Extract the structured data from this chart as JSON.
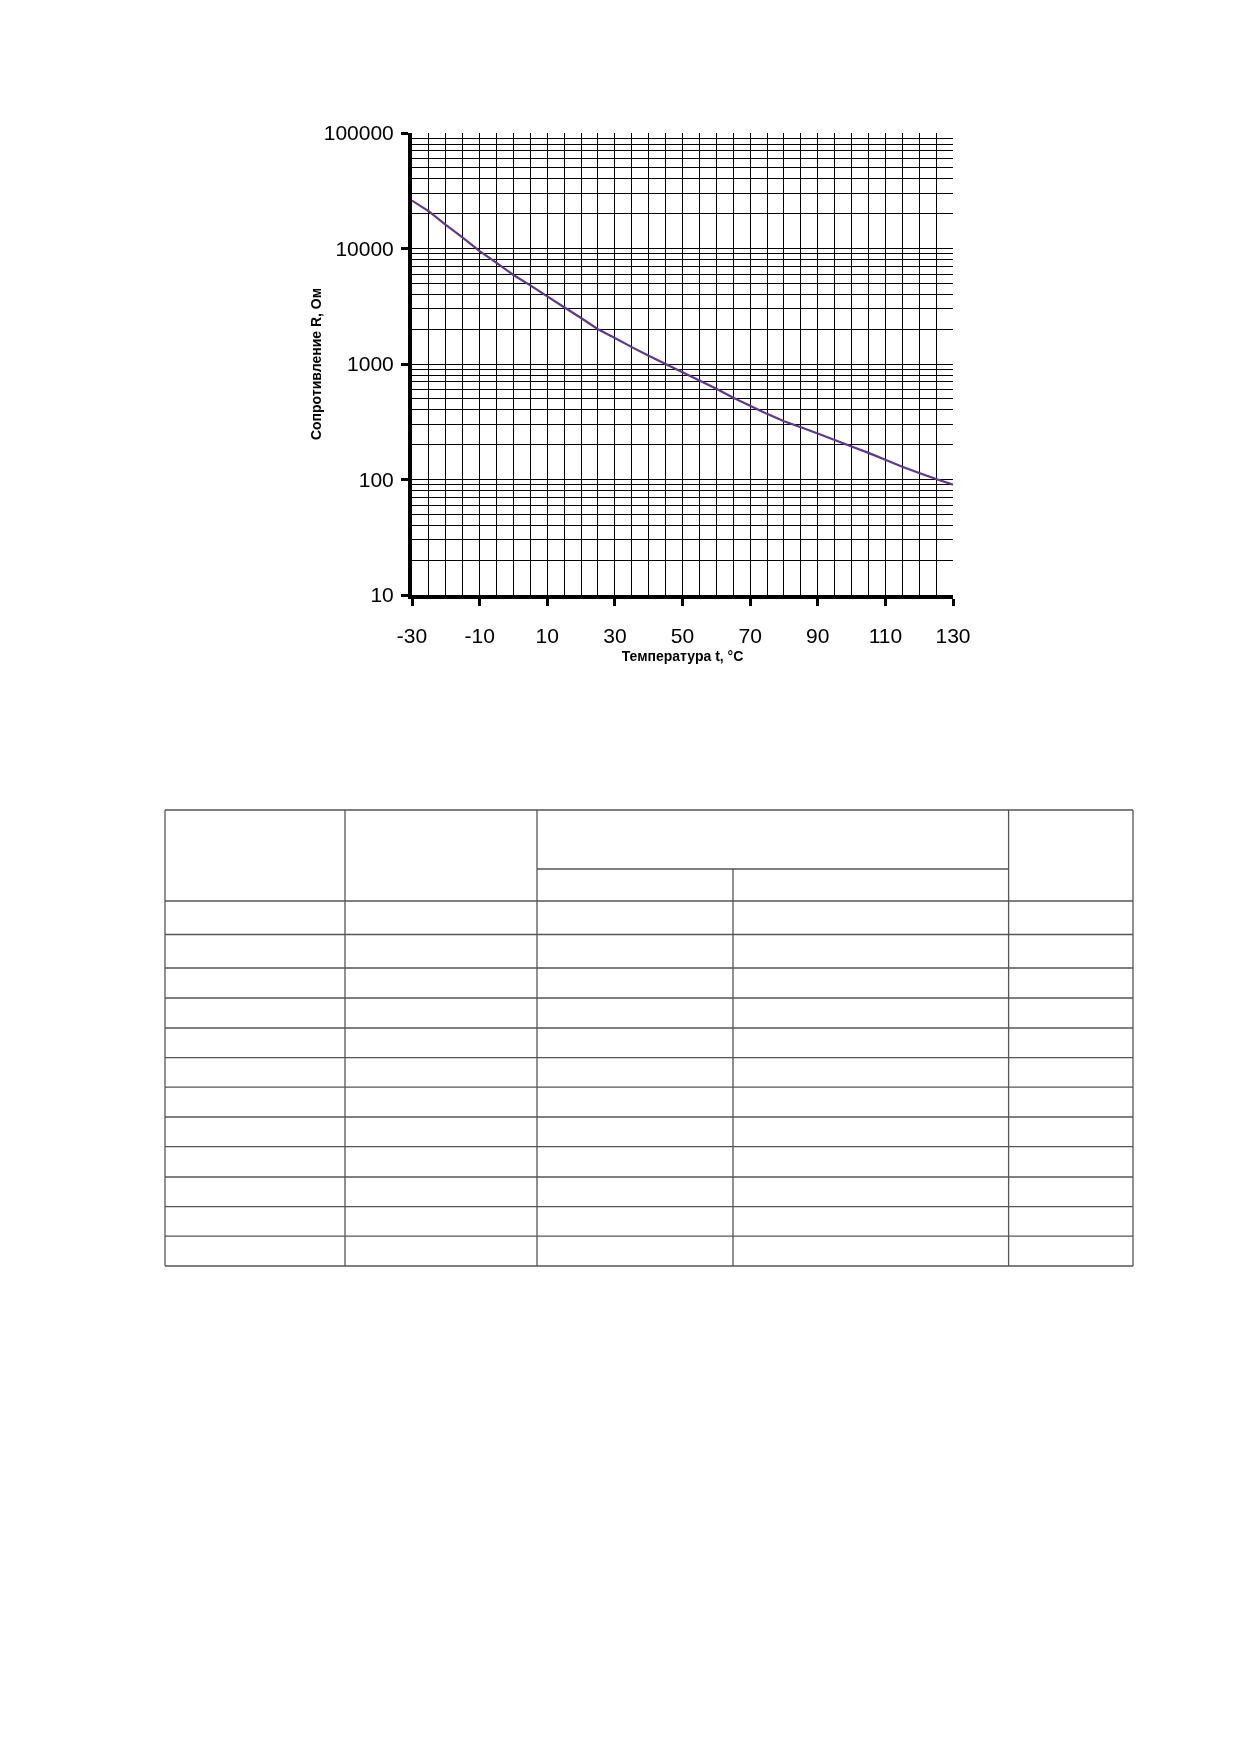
{
  "chart_data": {
    "type": "line",
    "xlabel": "Температура t, °C",
    "ylabel": "Сопротивление R, Ом",
    "x": [
      -30,
      -25,
      -20,
      -15,
      -10,
      -5,
      0,
      5,
      10,
      15,
      20,
      25,
      30,
      35,
      40,
      45,
      50,
      55,
      60,
      65,
      70,
      75,
      80,
      85,
      90,
      95,
      100,
      105,
      110,
      115,
      120,
      125,
      130
    ],
    "series": [
      {
        "color": "#5b3a8c",
        "values": [
          26000,
          21000,
          16000,
          12400,
          9500,
          7500,
          5900,
          4800,
          3850,
          3100,
          2500,
          2000,
          1680,
          1400,
          1180,
          1000,
          850,
          720,
          610,
          510,
          435,
          370,
          320,
          283,
          250,
          220,
          193,
          170,
          148,
          129,
          114,
          101,
          90
        ]
      }
    ],
    "xlim": [
      -30,
      130
    ],
    "xticks": [
      -30,
      {
        "value": -25,
        "label": null
      },
      {
        "value": -20,
        "label": null
      },
      {
        "value": -15,
        "label": null
      },
      -10,
      {
        "value": -5,
        "label": null
      },
      {
        "value": 0,
        "label": null
      },
      {
        "value": 5,
        "label": null
      },
      10,
      {
        "value": 15,
        "label": null
      },
      {
        "value": 20,
        "label": null
      },
      {
        "value": 25,
        "label": null
      },
      30,
      {
        "value": 35,
        "label": null
      },
      {
        "value": 40,
        "label": null
      },
      {
        "value": 45,
        "label": null
      },
      50,
      {
        "value": 55,
        "label": null
      },
      {
        "value": 60,
        "label": null
      },
      {
        "value": 65,
        "label": null
      },
      70,
      {
        "value": 75,
        "label": null
      },
      {
        "value": 80,
        "label": null
      },
      {
        "value": 85,
        "label": null
      },
      90,
      {
        "value": 95,
        "label": null
      },
      {
        "value": 100,
        "label": null
      },
      {
        "value": 105,
        "label": null
      },
      110,
      {
        "value": 115,
        "label": null
      },
      {
        "value": 120,
        "label": null
      },
      {
        "value": 125,
        "label": null
      },
      130
    ],
    "ylim": [
      10,
      100000
    ],
    "yticks": [
      10,
      {
        "value": 20,
        "label": null
      },
      {
        "value": 30,
        "label": null
      },
      {
        "value": 40,
        "label": null
      },
      {
        "value": 50,
        "label": null
      },
      {
        "value": 60,
        "label": null
      },
      {
        "value": 70,
        "label": null
      },
      {
        "value": 80,
        "label": null
      },
      {
        "value": 90,
        "label": null
      },
      100,
      {
        "value": 200,
        "label": null
      },
      {
        "value": 300,
        "label": null
      },
      {
        "value": 400,
        "label": null
      },
      {
        "value": 500,
        "label": null
      },
      {
        "value": 600,
        "label": null
      },
      {
        "value": 700,
        "label": null
      },
      {
        "value": 800,
        "label": null
      },
      {
        "value": 900,
        "label": null
      },
      1000,
      {
        "value": 2000,
        "label": null
      },
      {
        "value": 3000,
        "label": null
      },
      {
        "value": 4000,
        "label": null
      },
      {
        "value": 5000,
        "label": null
      },
      {
        "value": 6000,
        "label": null
      },
      {
        "value": 7000,
        "label": null
      },
      {
        "value": 8000,
        "label": null
      },
      {
        "value": 9000,
        "label": null
      },
      10000,
      {
        "value": 20000,
        "label": null
      },
      {
        "value": 30000,
        "label": null
      },
      {
        "value": 40000,
        "label": null
      },
      {
        "value": 50000,
        "label": null
      },
      {
        "value": 60000,
        "label": null
      },
      {
        "value": 70000,
        "label": null
      },
      {
        "value": 80000,
        "label": null
      },
      {
        "value": 90000,
        "label": null
      },
      100000
    ],
    "log": "y",
    "grid": true
  }
}
